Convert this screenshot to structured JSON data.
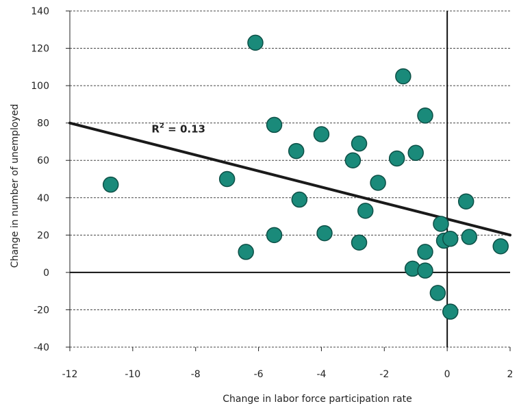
{
  "chart_data": {
    "type": "scatter",
    "title": "",
    "xlabel": "Change in labor force participation rate",
    "ylabel": "Change in number of unemployed",
    "xlim": [
      -12,
      2
    ],
    "ylim": [
      -40,
      140
    ],
    "x_ticks": [
      -12,
      -10,
      -8,
      -6,
      -4,
      -2,
      0,
      2
    ],
    "y_ticks": [
      -40,
      -20,
      0,
      20,
      40,
      60,
      80,
      100,
      120,
      140
    ],
    "grid": "horizontal-dashed",
    "marker_color": "#1a8a7a",
    "marker_edge_color": "#0d4f46",
    "points": [
      {
        "x": -10.7,
        "y": 47
      },
      {
        "x": -7.0,
        "y": 50
      },
      {
        "x": -6.4,
        "y": 11
      },
      {
        "x": -6.1,
        "y": 123
      },
      {
        "x": -5.5,
        "y": 79
      },
      {
        "x": -5.5,
        "y": 20
      },
      {
        "x": -4.8,
        "y": 65
      },
      {
        "x": -4.7,
        "y": 39
      },
      {
        "x": -4.0,
        "y": 74
      },
      {
        "x": -3.9,
        "y": 21
      },
      {
        "x": -3.0,
        "y": 60
      },
      {
        "x": -2.8,
        "y": 69
      },
      {
        "x": -2.8,
        "y": 16
      },
      {
        "x": -2.6,
        "y": 33
      },
      {
        "x": -2.2,
        "y": 48
      },
      {
        "x": -1.6,
        "y": 61
      },
      {
        "x": -1.4,
        "y": 105
      },
      {
        "x": -1.1,
        "y": 2
      },
      {
        "x": -1.0,
        "y": 64
      },
      {
        "x": -0.7,
        "y": 84
      },
      {
        "x": -0.7,
        "y": 11
      },
      {
        "x": -0.7,
        "y": 1
      },
      {
        "x": -0.3,
        "y": -11
      },
      {
        "x": -0.2,
        "y": 26
      },
      {
        "x": -0.1,
        "y": 17
      },
      {
        "x": 0.1,
        "y": 18
      },
      {
        "x": 0.1,
        "y": -21
      },
      {
        "x": 0.6,
        "y": 38
      },
      {
        "x": 0.7,
        "y": 19
      },
      {
        "x": 1.7,
        "y": 14
      }
    ],
    "trendline": {
      "x": [
        -12,
        2
      ],
      "y": [
        80,
        20
      ]
    },
    "annotation": {
      "base": "R",
      "superscript": "2",
      "rest": " = 0.13",
      "x": -9.4,
      "y": 75
    }
  }
}
